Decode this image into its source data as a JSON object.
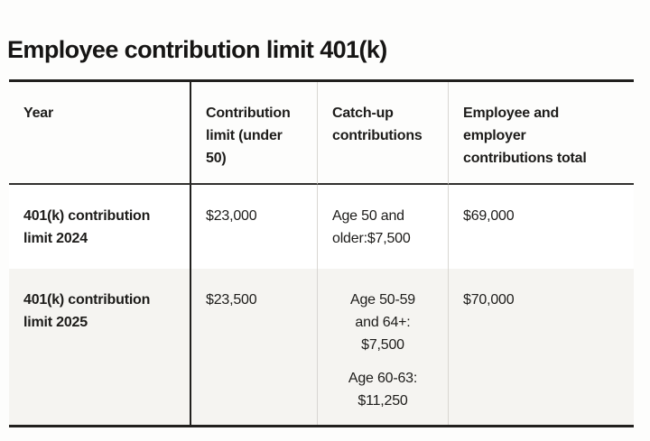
{
  "page": {
    "title": "Employee contribution limit 401(k)"
  },
  "table": {
    "headers": [
      "Year",
      "Contribution limit (under 50)",
      "Catch-up contributions",
      "Employee and employer contributions total"
    ],
    "rows": [
      {
        "year": "401(k) contribution limit 2024",
        "limit": "$23,000",
        "catch_up": [
          "Age 50 and older:$7,500"
        ],
        "total": "$69,000"
      },
      {
        "year": "401(k) contribution limit 2025",
        "limit": "$23,500",
        "catch_up": [
          "Age 50-59 and 64+: $7,500",
          "Age 60-63: $11,250"
        ],
        "total": "$70,000"
      }
    ],
    "colors": {
      "text": "#1d1c1a",
      "border_dark": "#21201e",
      "border_light": "#d8d6d2",
      "alt_row_bg": "#f5f4f1",
      "page_bg": "#fdfdfc"
    }
  }
}
